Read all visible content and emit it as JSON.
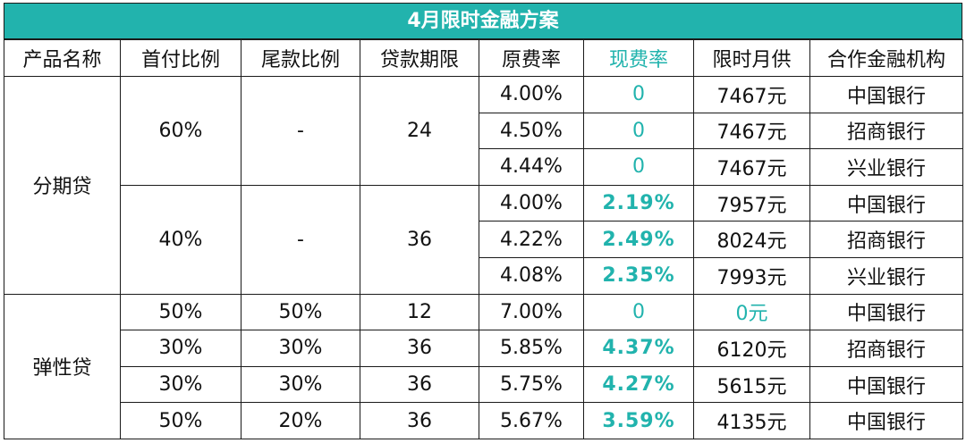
{
  "title": "4月限时金融方案",
  "accent_color": "#22b3ad",
  "headers": [
    "产品名称",
    "首付比例",
    "尾款比例",
    "贷款期限",
    "原费率",
    "现费率",
    "限时月供",
    "合作金融机构"
  ],
  "products": [
    {
      "name": "分期贷",
      "groups": [
        {
          "down": "60%",
          "balloon": "-",
          "term": "24",
          "rows": [
            {
              "orig": "4.00%",
              "now": "0",
              "monthly": "7467元",
              "inst": "中国银行"
            },
            {
              "orig": "4.50%",
              "now": "0",
              "monthly": "7467元",
              "inst": "招商银行"
            },
            {
              "orig": "4.44%",
              "now": "0",
              "monthly": "7467元",
              "inst": "兴业银行"
            }
          ]
        },
        {
          "down": "40%",
          "balloon": "-",
          "term": "36",
          "rows": [
            {
              "orig": "4.00%",
              "now": "2.19%",
              "monthly": "7957元",
              "inst": "中国银行"
            },
            {
              "orig": "4.22%",
              "now": "2.49%",
              "monthly": "8024元",
              "inst": "招商银行"
            },
            {
              "orig": "4.08%",
              "now": "2.35%",
              "monthly": "7993元",
              "inst": "兴业银行"
            }
          ]
        }
      ]
    },
    {
      "name": "弹性贷",
      "rows": [
        {
          "down": "50%",
          "balloon": "50%",
          "term": "12",
          "orig": "7.00%",
          "now": "0",
          "monthly": "0元",
          "inst": "中国银行"
        },
        {
          "down": "30%",
          "balloon": "30%",
          "term": "36",
          "orig": "5.85%",
          "now": "4.37%",
          "monthly": "6120元",
          "inst": "招商银行"
        },
        {
          "down": "30%",
          "balloon": "30%",
          "term": "36",
          "orig": "5.75%",
          "now": "4.27%",
          "monthly": "5615元",
          "inst": "中国银行"
        },
        {
          "down": "50%",
          "balloon": "20%",
          "term": "36",
          "orig": "5.67%",
          "now": "3.59%",
          "monthly": "4135元",
          "inst": "中国银行"
        }
      ]
    }
  ]
}
